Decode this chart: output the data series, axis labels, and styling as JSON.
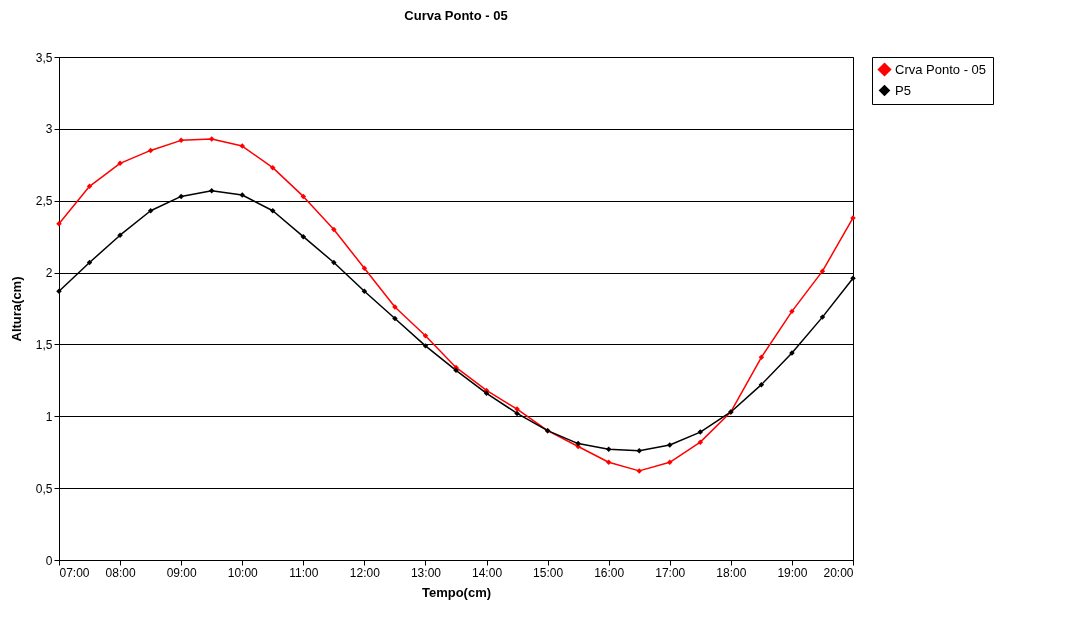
{
  "chart_data": {
    "type": "line",
    "title": "Curva Ponto - 05",
    "xlabel": "Tempo(cm)",
    "ylabel": "Altura(cm)",
    "x": [
      7,
      7.5,
      8,
      8.5,
      9,
      9.5,
      10,
      10.5,
      11,
      11.5,
      12,
      12.5,
      13,
      13.5,
      14,
      14.5,
      15,
      15.5,
      16,
      16.5,
      17,
      17.5,
      18,
      18.5,
      19,
      19.5,
      20
    ],
    "series": [
      {
        "name": "Crva Ponto - 05",
        "color": "#ff0000",
        "values": [
          2.34,
          2.6,
          2.76,
          2.85,
          2.92,
          2.93,
          2.88,
          2.73,
          2.53,
          2.3,
          2.03,
          1.76,
          1.56,
          1.34,
          1.18,
          1.05,
          0.9,
          0.79,
          0.68,
          0.62,
          0.68,
          0.82,
          1.03,
          1.41,
          1.73,
          2.01,
          2.38
        ]
      },
      {
        "name": "P5",
        "color": "#000000",
        "values": [
          1.87,
          2.07,
          2.26,
          2.43,
          2.53,
          2.57,
          2.54,
          2.43,
          2.25,
          2.07,
          1.87,
          1.68,
          1.49,
          1.32,
          1.16,
          1.02,
          0.9,
          0.81,
          0.77,
          0.76,
          0.8,
          0.89,
          1.03,
          1.22,
          1.44,
          1.69,
          1.96
        ]
      }
    ],
    "xlim": [
      7,
      20
    ],
    "xticks": [
      {
        "value": 7,
        "label": "07:00"
      },
      {
        "value": 8,
        "label": "08:00"
      },
      {
        "value": 9,
        "label": "09:00"
      },
      {
        "value": 10,
        "label": "10:00"
      },
      {
        "value": 11,
        "label": "11:00"
      },
      {
        "value": 12,
        "label": "12:00"
      },
      {
        "value": 13,
        "label": "13:00"
      },
      {
        "value": 14,
        "label": "14:00"
      },
      {
        "value": 15,
        "label": "15:00"
      },
      {
        "value": 16,
        "label": "16:00"
      },
      {
        "value": 17,
        "label": "17:00"
      },
      {
        "value": 18,
        "label": "18:00"
      },
      {
        "value": 19,
        "label": "19:00"
      },
      {
        "value": 20,
        "label": "20:00"
      }
    ],
    "ylim": [
      0,
      3.5
    ],
    "yticks": [
      {
        "value": 0,
        "label": "0"
      },
      {
        "value": 0.5,
        "label": "0,5"
      },
      {
        "value": 1,
        "label": "1"
      },
      {
        "value": 1.5,
        "label": "1,5"
      },
      {
        "value": 2,
        "label": "2"
      },
      {
        "value": 2.5,
        "label": "2,5"
      },
      {
        "value": 3,
        "label": "3"
      },
      {
        "value": 3.5,
        "label": "3,5"
      }
    ],
    "grid": "y",
    "legend": "right",
    "marker": "diamond",
    "line_style": "solid"
  }
}
